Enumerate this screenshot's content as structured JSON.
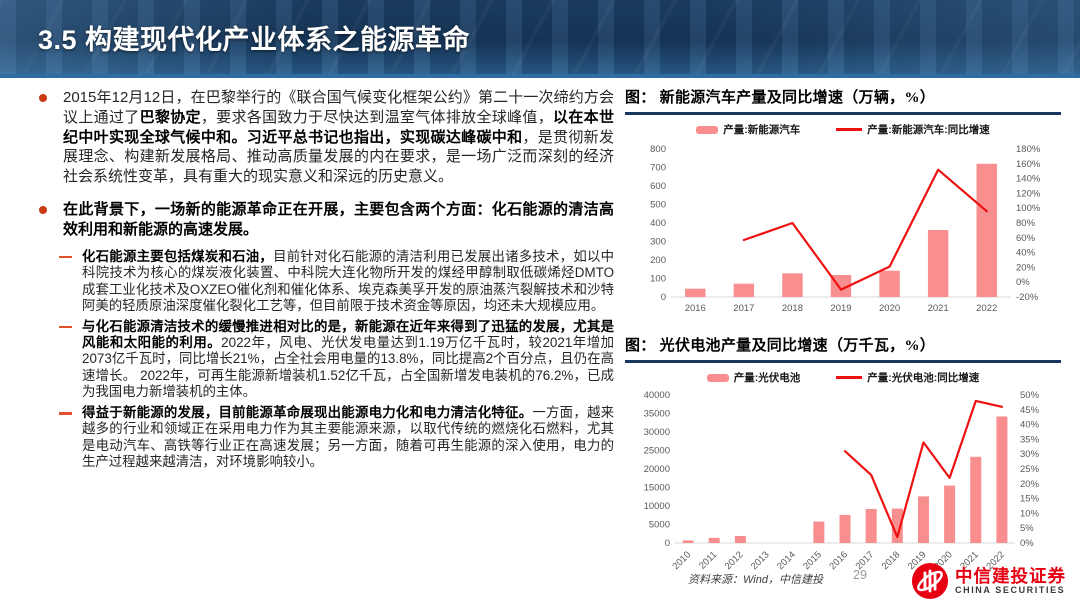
{
  "slide": {
    "title": "3.5 构建现代化产业体系之能源革命",
    "page_number": "29",
    "source": "资料来源：Wind，中信建投"
  },
  "colors": {
    "header_bg": "#17395e",
    "separator": "#2e6da4",
    "bullet_dot": "#cc3a14",
    "bullet_dash": "#e0512b",
    "bar": "#f98e8e",
    "line": "#ee1111",
    "chart_underline": "#17375e",
    "logo_red": "#e60012"
  },
  "bullets": [
    {
      "level": 1,
      "segments": [
        {
          "text": "2015年12月12日，在巴黎举行的《联合国气候变化框架公约》第二十一次缔约方会议上通过了",
          "bold": false
        },
        {
          "text": "巴黎协定",
          "bold": true
        },
        {
          "text": "，要求各国致力于尽快达到温室气体排放全球峰值，",
          "bold": false
        },
        {
          "text": "以在本世纪中叶实现全球气候中和。习近平总书记也指出，实现碳达峰碳中和",
          "bold": true
        },
        {
          "text": "，是贯彻新发展理念、构建新发展格局、推动高质量发展的内在要求，是一场广泛而深刻的经济社会系统性变革，具有重大的现实意义和深远的历史意义。",
          "bold": false
        }
      ]
    },
    {
      "level": 1,
      "segments": [
        {
          "text": "在此背景下，一场新的能源革命正在开展，主要包含两个方面：化石能源的清洁高效利用和新能源的高速发展。",
          "bold": true
        }
      ]
    },
    {
      "level": 2,
      "segments": [
        {
          "text": "化石能源主要包括煤炭和石油，",
          "bold": true
        },
        {
          "text": "目前针对化石能源的清洁利用已发展出诸多技术，如以中科院技术为核心的煤炭液化装置、中科院大连化物所开发的煤经甲醇制取低碳烯烃DMTO成套工业化技术及OXZEO催化剂和催化体系、埃克森美孚开发的原油蒸汽裂解技术和沙特阿美的轻质原油深度催化裂化工艺等，但目前限于技术资金等原因，均还未大规模应用。",
          "bold": false
        }
      ]
    },
    {
      "level": 2,
      "segments": [
        {
          "text": "与化石能源清洁技术的缓慢推进相对比的是，新能源在近年来得到了迅猛的发展，尤其是风能和太阳能的利用。",
          "bold": true
        },
        {
          "text": "2022年，风电、光伏发电量达到1.19万亿千瓦时，较2021年增加2073亿千瓦时，同比增长21%，占全社会用电量的13.8%，同比提高2个百分点，且仍在高速增长。 2022年，可再生能源新增装机1.52亿千瓦，占全国新增发电装机的76.2%，已成为我国电力新增装机的主体。",
          "bold": false
        }
      ]
    },
    {
      "level": 2,
      "segments": [
        {
          "text": "得益于新能源的发展，目前能源革命展现出能源电力化和电力清洁化特征。",
          "bold": true
        },
        {
          "text": "一方面，越来越多的行业和领域正在采用电力作为其主要能源来源，以取代传统的燃烧化石燃料，尤其是电动汽车、高铁等行业正在高速发展；另一方面，随着可再生能源的深入使用，电力的生产过程越来越清洁，对环境影响较小。",
          "bold": false
        }
      ]
    }
  ],
  "chart_data": [
    {
      "type": "bar",
      "subtype": "bar+line combo, dual axis",
      "title": "图： 新能源汽车产量及同比增速（万辆，%）",
      "categories": [
        "2016",
        "2017",
        "2018",
        "2019",
        "2020",
        "2021",
        "2022"
      ],
      "series": [
        {
          "name": "产量:新能源汽车",
          "type": "bar",
          "axis": "left",
          "values": [
            45,
            72,
            128,
            119,
            142,
            362,
            720
          ]
        },
        {
          "name": "产量:新能源汽车:同比增速",
          "type": "line",
          "axis": "right",
          "values": [
            null,
            57,
            80,
            -10,
            21,
            152,
            96
          ]
        }
      ],
      "left_axis": {
        "min": 0,
        "max": 800,
        "step": 100
      },
      "right_axis": {
        "min": -20,
        "max": 180,
        "step": 20,
        "suffix": "%"
      },
      "legend_position": "top",
      "grid": false
    },
    {
      "type": "bar",
      "subtype": "bar+line combo, dual axis",
      "title": "图： 光伏电池产量及同比增速（万千瓦，%）",
      "categories": [
        "2010",
        "2011",
        "2012",
        "2013",
        "2014",
        "2015",
        "2016",
        "2017",
        "2018",
        "2019",
        "2020",
        "2021",
        "2022"
      ],
      "series": [
        {
          "name": "产量:光伏电池",
          "type": "bar",
          "axis": "left",
          "values": [
            700,
            1400,
            1900,
            null,
            null,
            5800,
            7600,
            9200,
            9300,
            12600,
            15500,
            23300,
            34200
          ]
        },
        {
          "name": "产量:光伏电池:同比增速",
          "type": "line",
          "axis": "right",
          "values": [
            null,
            null,
            null,
            null,
            null,
            null,
            31,
            23,
            2,
            34,
            22,
            48,
            46
          ]
        }
      ],
      "left_axis": {
        "min": 0,
        "max": 40000,
        "step": 5000
      },
      "right_axis": {
        "min": 0,
        "max": 50,
        "step": 5,
        "suffix": "%"
      },
      "legend_position": "top",
      "grid": false,
      "x_label_rotation": -45
    }
  ],
  "logo": {
    "name_cn": "中信建投证券",
    "name_en": "CHINA SECURITIES"
  }
}
